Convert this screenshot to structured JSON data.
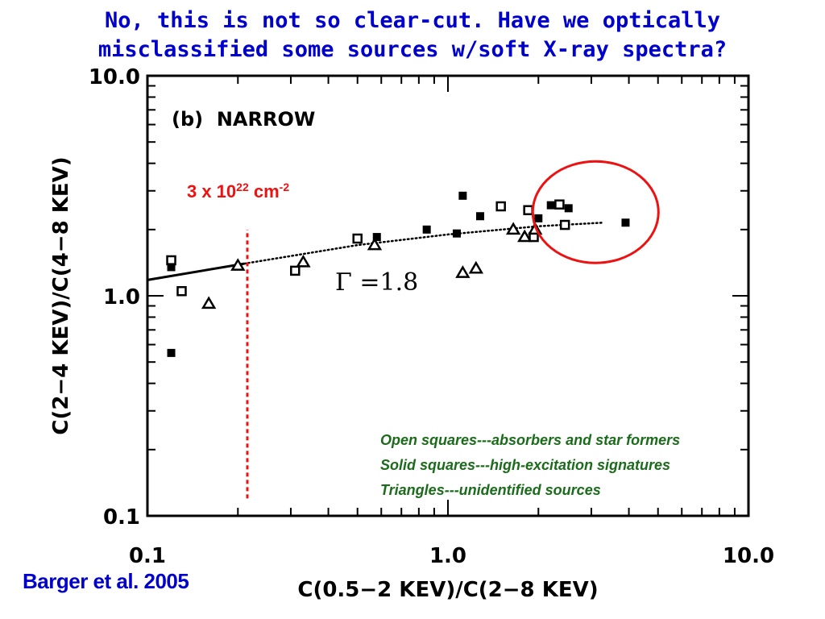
{
  "slide": {
    "title_line1": "No, this is not so clear-cut.  Have we optically",
    "title_line2": "misclassified some sources w/soft X-ray spectra?",
    "citation": "Barger et al. 2005",
    "notes": [
      "Open squares---absorbers and star formers",
      "Solid squares---high-excitation signatures",
      "Triangles---unidentified sources"
    ],
    "colors": {
      "title": "#0000cc",
      "citation": "#0000cc",
      "notes": "#1a6b1a",
      "annotation": "#ee1111",
      "marker": "#000000"
    }
  },
  "chart_data": {
    "type": "scatter",
    "panel_label": "(b)  NARROW",
    "xlabel": "C(0.5−2 KEV)/C(2−8 KEV)",
    "ylabel": "C(2−4 KEV)/C(4−8 KEV)",
    "xscale": "log",
    "yscale": "log",
    "xlim": [
      0.1,
      10.0
    ],
    "ylim": [
      0.1,
      10.0
    ],
    "xticks": [
      {
        "v": 0.1,
        "label": "0.1"
      },
      {
        "v": 1.0,
        "label": "1.0"
      },
      {
        "v": 10.0,
        "label": "10.0"
      }
    ],
    "yticks": [
      {
        "v": 0.1,
        "label": "0.1"
      },
      {
        "v": 1.0,
        "label": "1.0"
      },
      {
        "v": 10.0,
        "label": "10.0"
      }
    ],
    "series": [
      {
        "name": "Open squares---absorbers and star formers",
        "marker": "open-square",
        "points": [
          {
            "x": 0.12,
            "y": 1.45
          },
          {
            "x": 0.13,
            "y": 1.05
          },
          {
            "x": 0.31,
            "y": 1.3
          },
          {
            "x": 0.5,
            "y": 1.82
          },
          {
            "x": 1.5,
            "y": 2.55
          },
          {
            "x": 1.85,
            "y": 2.45
          },
          {
            "x": 1.93,
            "y": 1.85
          },
          {
            "x": 2.35,
            "y": 2.6
          },
          {
            "x": 2.45,
            "y": 2.1
          }
        ]
      },
      {
        "name": "Solid squares---high-excitation signatures",
        "marker": "solid-square",
        "points": [
          {
            "x": 0.12,
            "y": 1.35
          },
          {
            "x": 0.12,
            "y": 0.55
          },
          {
            "x": 0.58,
            "y": 1.85
          },
          {
            "x": 0.85,
            "y": 2.0
          },
          {
            "x": 1.07,
            "y": 1.92
          },
          {
            "x": 1.12,
            "y": 2.85
          },
          {
            "x": 1.28,
            "y": 2.3
          },
          {
            "x": 2.0,
            "y": 2.25
          },
          {
            "x": 2.2,
            "y": 2.58
          },
          {
            "x": 2.52,
            "y": 2.5
          },
          {
            "x": 3.9,
            "y": 2.15
          }
        ]
      },
      {
        "name": "Triangles---unidentified sources",
        "marker": "open-triangle",
        "points": [
          {
            "x": 0.16,
            "y": 0.92
          },
          {
            "x": 0.2,
            "y": 1.37
          },
          {
            "x": 0.33,
            "y": 1.42
          },
          {
            "x": 0.57,
            "y": 1.7
          },
          {
            "x": 1.12,
            "y": 1.27
          },
          {
            "x": 1.24,
            "y": 1.33
          },
          {
            "x": 1.65,
            "y": 2.0
          },
          {
            "x": 1.8,
            "y": 1.85
          },
          {
            "x": 1.95,
            "y": 2.0
          }
        ]
      }
    ],
    "model_curve": {
      "label": "Γ =1.8",
      "solid_points": [
        {
          "x": 0.1,
          "y": 1.18
        },
        {
          "x": 0.21,
          "y": 1.4
        }
      ],
      "dotted_points": [
        {
          "x": 0.21,
          "y": 1.4
        },
        {
          "x": 0.5,
          "y": 1.7
        },
        {
          "x": 1.0,
          "y": 1.9
        },
        {
          "x": 2.0,
          "y": 2.07
        },
        {
          "x": 3.3,
          "y": 2.15
        }
      ]
    },
    "absorption_marker": {
      "x": 0.215,
      "y_range": [
        0.12,
        2.0
      ],
      "label_base": "3 x 10",
      "label_exp": "22",
      "label_unit": " cm",
      "label_unit_exp": "-2"
    },
    "highlight": {
      "x_center": 3.1,
      "y_center": 2.4
    }
  }
}
